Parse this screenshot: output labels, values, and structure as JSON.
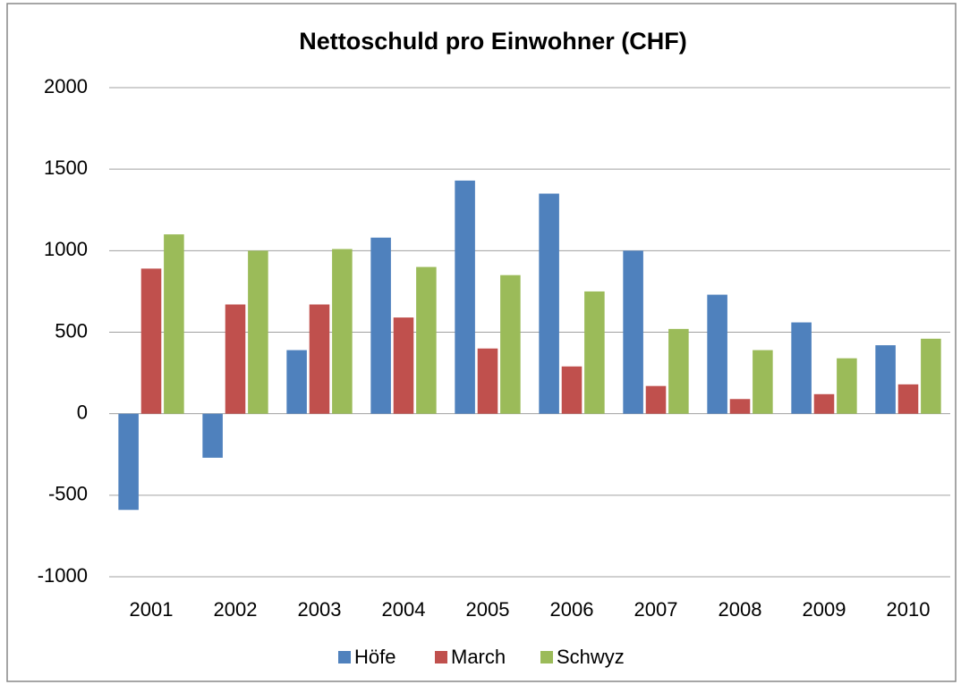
{
  "chart_data": {
    "type": "bar",
    "title": "Nettoschuld pro Einwohner (CHF)",
    "categories": [
      "2001",
      "2002",
      "2003",
      "2004",
      "2005",
      "2006",
      "2007",
      "2008",
      "2009",
      "2010"
    ],
    "series": [
      {
        "name": "Höfe",
        "color": "#4f81bd",
        "values": [
          -590,
          -270,
          390,
          1080,
          1430,
          1350,
          1000,
          730,
          560,
          420
        ]
      },
      {
        "name": "March",
        "color": "#c0504d",
        "values": [
          890,
          670,
          670,
          590,
          400,
          290,
          170,
          90,
          120,
          180
        ]
      },
      {
        "name": "Schwyz",
        "color": "#9bbb59",
        "values": [
          1100,
          1000,
          1010,
          900,
          850,
          750,
          520,
          390,
          340,
          460
        ]
      }
    ],
    "ylim": [
      -1000,
      2000
    ],
    "yticks": [
      -1000,
      -500,
      0,
      500,
      1000,
      1500,
      2000
    ],
    "grid": true,
    "legend": "bottom"
  }
}
